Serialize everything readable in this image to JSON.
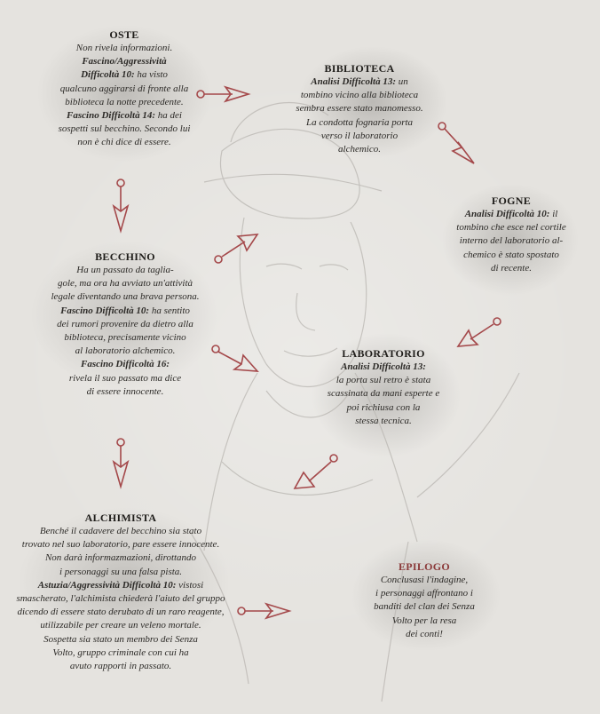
{
  "oste": {
    "title": "OSTE",
    "line1": "Non rivela informazioni.",
    "label1": "Fascino/Aggressività",
    "label1b": "Difficoltà 10:",
    "text1": " ha visto",
    "text1b": "qualcuno aggirarsi di fronte alla",
    "text1c": "biblioteca la notte precedente.",
    "label2": "Fascino Difficoltà 14:",
    "text2": " ha dei",
    "text2b": "sospetti sul becchino. Secondo lui",
    "text2c": "non è chi dice di essere."
  },
  "biblioteca": {
    "title": "BIBLIOTECA",
    "label": "Analisi Difficoltà 13:",
    "text": " un",
    "t2": "tombino vicino alla biblioteca",
    "t3": "sembra essere stato manomesso.",
    "t4": "La condotta fognaria porta",
    "t5": "verso il laboratorio",
    "t6": "alchemico."
  },
  "fogne": {
    "title": "FOGNE",
    "label": "Analisi Difficoltà 10:",
    "text": " il",
    "t2": "tombino che esce nel cortile",
    "t3": "interno del laboratorio al-",
    "t4": "chemico è stato spostato",
    "t5": "di recente."
  },
  "becchino": {
    "title": "BECCHINO",
    "t1": "Ha un passato da taglia-",
    "t2": "gole, ma ora ha avviato un'attività",
    "t3": "legale diventando una brava persona.",
    "label1": "Fascino Difficoltà 10:",
    "text1": " ha sentito",
    "t4": "dei rumori provenire da dietro alla",
    "t5": "biblioteca, precisamente vicino",
    "t6": "al laboratorio alchemico.",
    "label2": "Fascino Difficoltà 16:",
    "t7": "rivela il suo passato ma dice",
    "t8": "di essere innocente."
  },
  "laboratorio": {
    "title": "LABORATORIO",
    "label": "Analisi Difficoltà 13:",
    "t1": "la porta sul retro è stata",
    "t2": "scassinata da mani esperte e",
    "t3": "poi richiusa con la",
    "t4": "stessa tecnica."
  },
  "alchimista": {
    "title": "ALCHIMISTA",
    "t1": "Benché il cadavere del becchino sia stato",
    "t2": "trovato nel suo laboratorio, pare essere innocente.",
    "t3": "Non darà informazmazioni, dirottando",
    "t4": "i personaggi su una falsa pista.",
    "label": "Astuzia/Aggressività Difficoltà 10:",
    "text": " vistosi",
    "t5": "smascherato, l'alchimista chiederà l'aiuto del gruppo",
    "t6": "dicendo di essere stato derubato di un raro reagente,",
    "t7": "utilizzabile per creare un veleno mortale.",
    "t8": "Sospetta sia stato un membro dei Senza",
    "t9": "Volto, gruppo criminale con cui ha",
    "t10": "avuto rapporti in passato."
  },
  "epilogo": {
    "title": "EPILOGO",
    "t1": "Conclusasi l'indagine,",
    "t2": "i personaggi affrontano i",
    "t3": "banditi  del clan dei Senza",
    "t4": "Volto per la resa",
    "t5": "dei conti!"
  },
  "colors": {
    "arrow": "#a4484a",
    "title_red": "#8b3a3a"
  }
}
